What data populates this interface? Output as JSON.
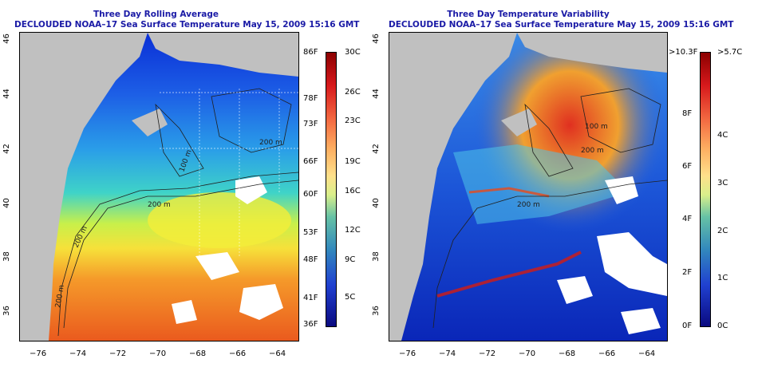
{
  "left_panel": {
    "title_line1": "Three Day Rolling Average",
    "title_line2": "DECLOUDED NOAA–17 Sea Surface Temperature May 15, 2009 15:16 GMT",
    "lon_ticks": [
      "−76",
      "−74",
      "−72",
      "−70",
      "−68",
      "−66",
      "−64"
    ],
    "lat_ticks": [
      "36",
      "38",
      "40",
      "42",
      "44",
      "46"
    ],
    "contour_labels": [
      "200 m",
      "200 m",
      "100 m",
      "200 m",
      "200 m"
    ],
    "colorbar_f": [
      "86F",
      "78F",
      "73F",
      "66F",
      "60F",
      "53F",
      "48F",
      "41F",
      "36F"
    ],
    "colorbar_c": [
      "30C",
      "26C",
      "23C",
      "19C",
      "16C",
      "12C",
      "9C",
      "5C"
    ]
  },
  "right_panel": {
    "title_line1": "Three Day Temperature Variability",
    "title_line2": "DECLOUDED NOAA–17 Sea Surface Temperature May 15, 2009 15:16 GMT",
    "lon_ticks": [
      "−76",
      "−74",
      "−72",
      "−70",
      "−68",
      "−66",
      "−64"
    ],
    "lat_ticks": [
      "36",
      "38",
      "40",
      "42",
      "44",
      "46"
    ],
    "contour_labels": [
      "200 m",
      "100 m",
      "200 m"
    ],
    "colorbar_f": [
      ">10.3F",
      "8F",
      "6F",
      "4F",
      "2F",
      "0F"
    ],
    "colorbar_c": [
      ">5.7C",
      "4C",
      "3C",
      "2C",
      "1C",
      "0C"
    ]
  },
  "colors": {
    "land": "#c0c0c0",
    "cloud": "#ffffff",
    "title": "#1a1aa6",
    "contour": "#202020"
  }
}
